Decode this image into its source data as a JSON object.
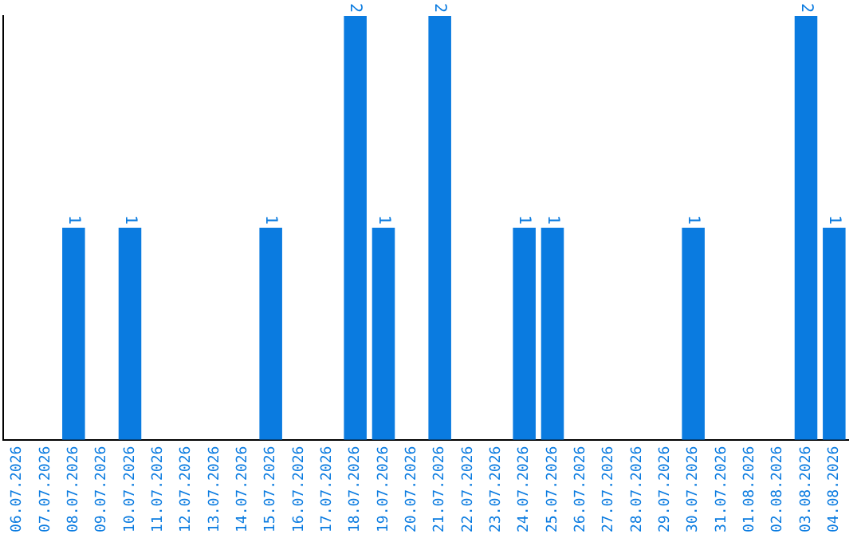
{
  "chart_data": {
    "type": "bar",
    "categories": [
      "06.07.2026",
      "07.07.2026",
      "08.07.2026",
      "09.07.2026",
      "10.07.2026",
      "11.07.2026",
      "12.07.2026",
      "13.07.2026",
      "14.07.2026",
      "15.07.2026",
      "16.07.2026",
      "17.07.2026",
      "18.07.2026",
      "19.07.2026",
      "20.07.2026",
      "21.07.2026",
      "22.07.2026",
      "23.07.2026",
      "24.07.2026",
      "25.07.2026",
      "26.07.2026",
      "27.07.2026",
      "28.07.2026",
      "29.07.2026",
      "30.07.2026",
      "31.07.2026",
      "01.08.2026",
      "02.08.2026",
      "03.08.2026",
      "04.08.2026"
    ],
    "values": [
      0,
      0,
      1,
      0,
      1,
      0,
      0,
      0,
      0,
      1,
      0,
      0,
      2,
      1,
      0,
      2,
      0,
      0,
      1,
      1,
      0,
      0,
      0,
      0,
      1,
      0,
      0,
      0,
      2,
      1
    ],
    "value_labels": [
      null,
      null,
      "1",
      null,
      "1",
      null,
      null,
      null,
      null,
      "1",
      null,
      null,
      "2",
      "1",
      null,
      "2",
      null,
      null,
      "1",
      "1",
      null,
      null,
      null,
      null,
      "1",
      null,
      null,
      null,
      "2",
      "1"
    ],
    "color": "#0a7be0",
    "ylim": [
      0,
      2
    ],
    "tick_labels": "x",
    "grid": false,
    "legend": false
  }
}
